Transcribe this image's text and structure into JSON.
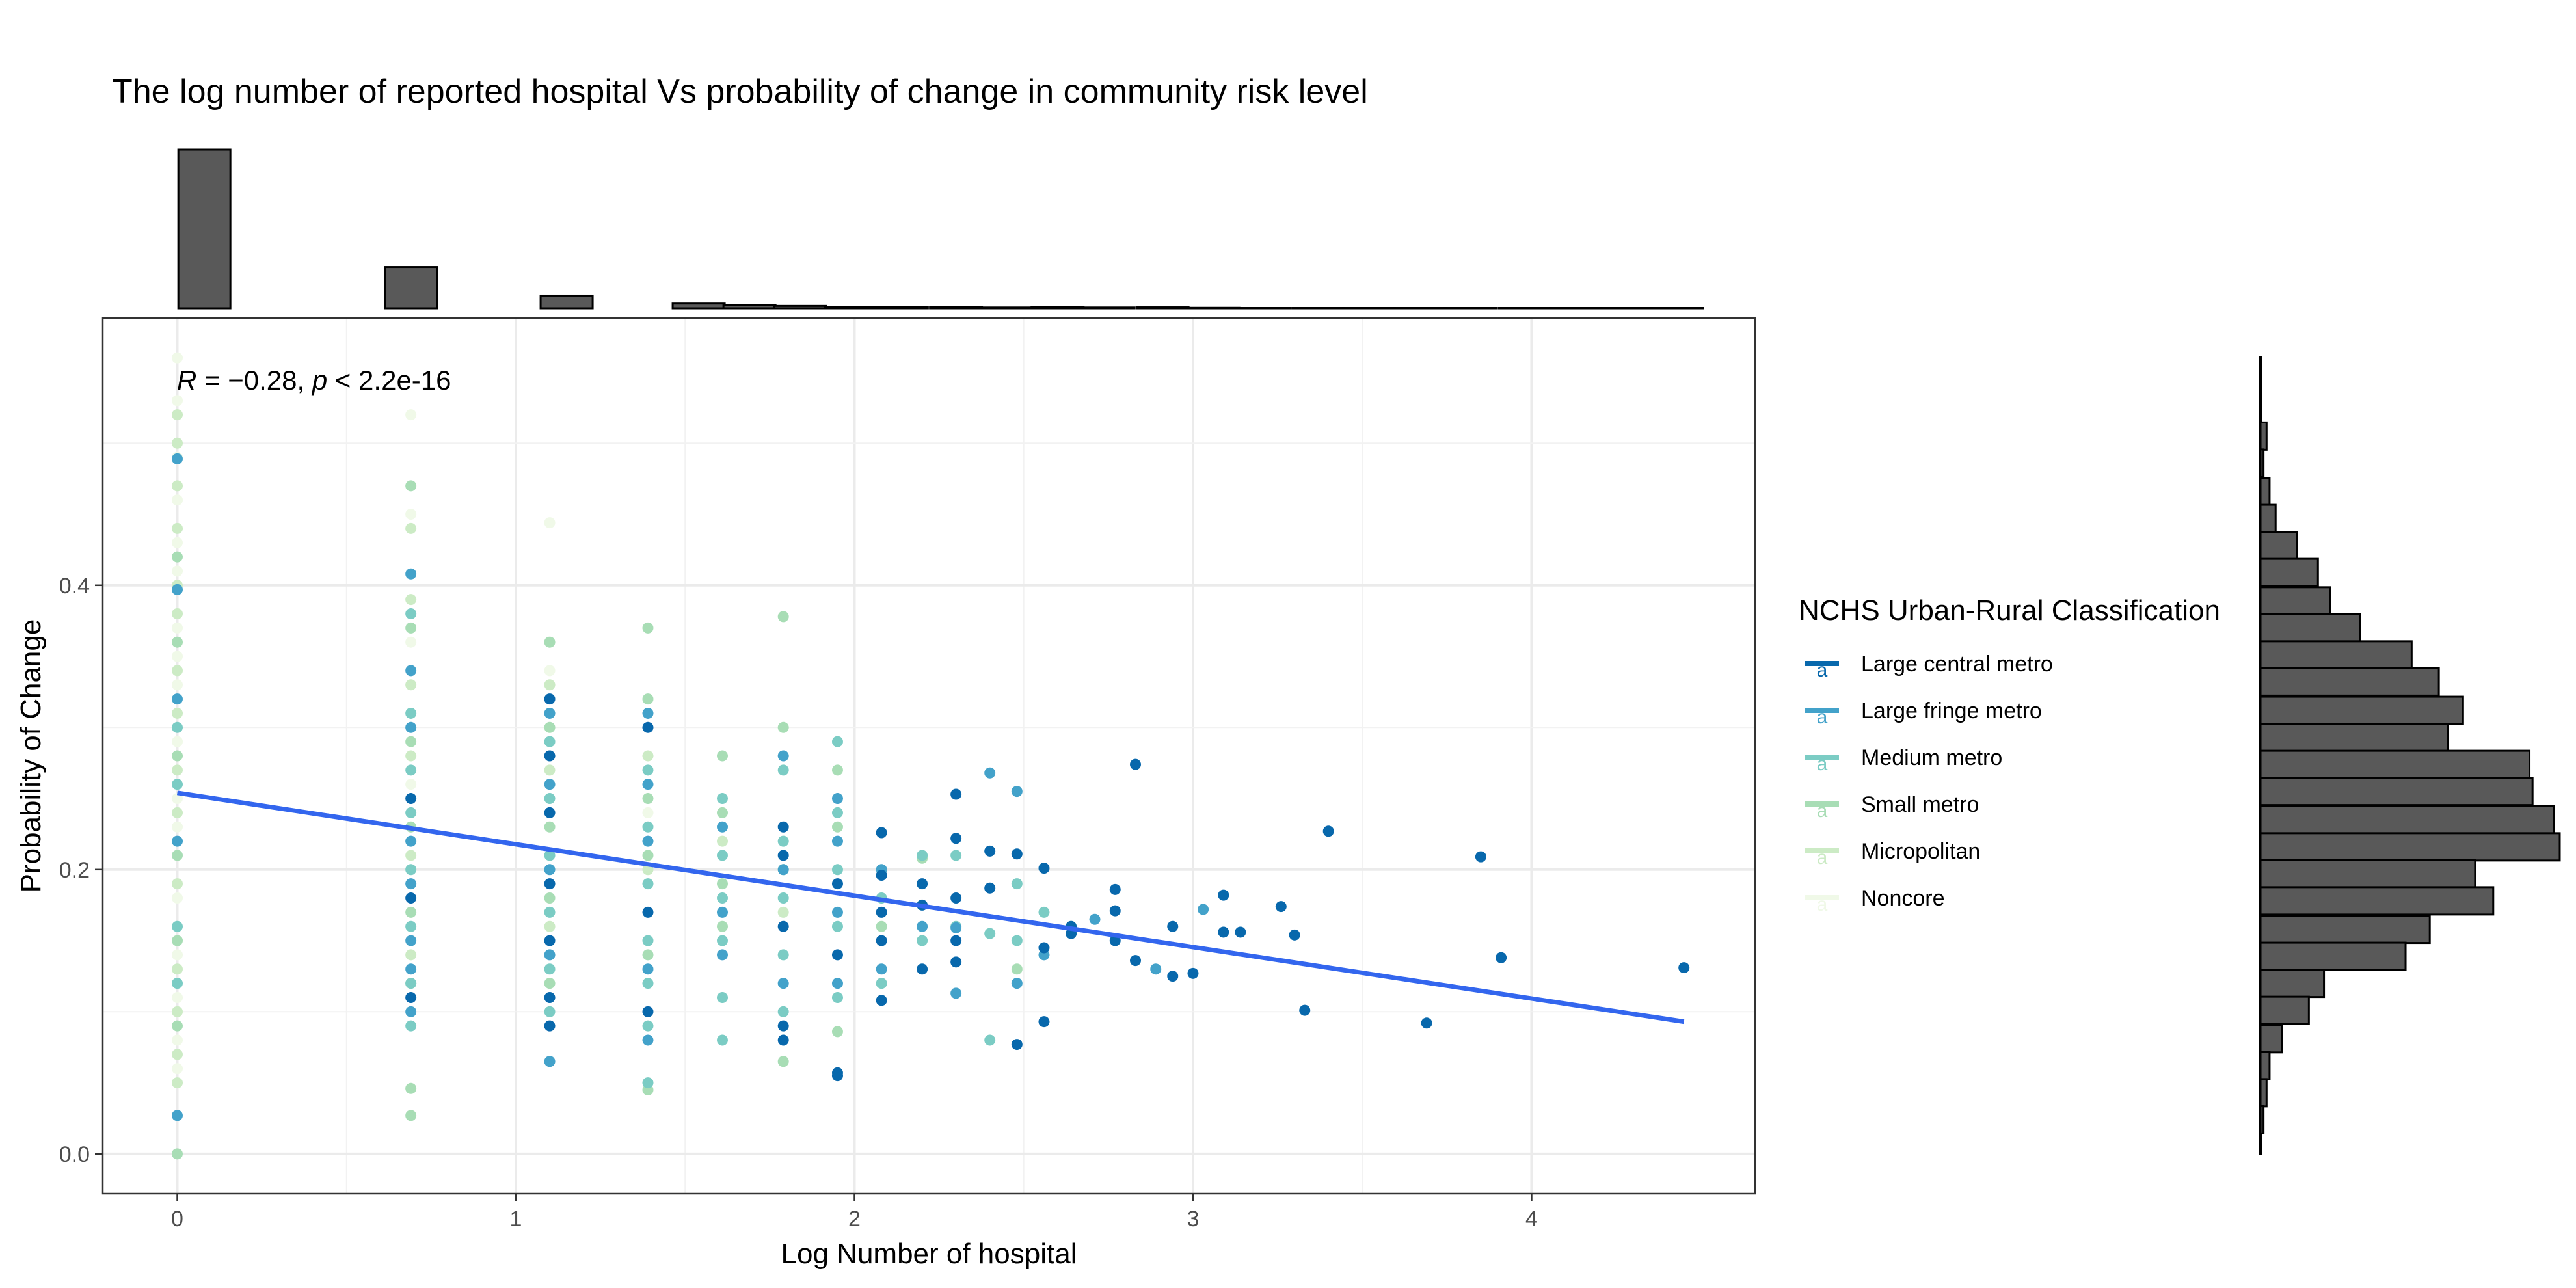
{
  "chart_data": {
    "type": "scatter",
    "title": "The log number of reported hospital Vs probability of change in community risk level",
    "xlabel": "Log Number of hospital",
    "ylabel": "Probability of Change",
    "xlim": [
      -0.22,
      4.66
    ],
    "ylim": [
      -0.028,
      0.588
    ],
    "x_ticks": [
      0,
      1,
      2,
      3,
      4
    ],
    "x_tick_labels": [
      "0",
      "1",
      "2",
      "3",
      "4"
    ],
    "y_ticks": [
      0.0,
      0.2,
      0.4
    ],
    "y_tick_labels": [
      "0.0",
      "0.2",
      "0.4"
    ],
    "grid": true,
    "annotation": {
      "r_symbol": "R",
      "r_text": " = −0.28, ",
      "p_symbol": "p",
      "p_text": " < 2.2e-16",
      "position": "top-left"
    },
    "regression_line": {
      "x": [
        0,
        4.45
      ],
      "y": [
        0.254,
        0.093
      ],
      "color": "#3366ee"
    },
    "legend": {
      "title": "NCHS Urban-Rural Classification",
      "placement": "right",
      "key_glyph": "a"
    },
    "series": [
      {
        "name": "Large central metro",
        "color": "#0868ac",
        "points": [
          [
            1.1,
            0.32
          ],
          [
            1.1,
            0.28
          ],
          [
            1.1,
            0.24
          ],
          [
            1.1,
            0.19
          ],
          [
            1.1,
            0.15
          ],
          [
            1.1,
            0.11
          ],
          [
            1.1,
            0.09
          ],
          [
            0.69,
            0.11
          ],
          [
            0.69,
            0.18
          ],
          [
            0.69,
            0.25
          ],
          [
            1.39,
            0.3
          ],
          [
            1.39,
            0.17
          ],
          [
            1.39,
            0.1
          ],
          [
            1.79,
            0.23
          ],
          [
            1.79,
            0.21
          ],
          [
            1.79,
            0.16
          ],
          [
            1.79,
            0.09
          ],
          [
            1.79,
            0.08
          ],
          [
            1.95,
            0.19
          ],
          [
            1.95,
            0.14
          ],
          [
            1.95,
            0.055
          ],
          [
            1.95,
            0.057
          ],
          [
            2.08,
            0.226
          ],
          [
            2.08,
            0.196
          ],
          [
            2.08,
            0.17
          ],
          [
            2.08,
            0.15
          ],
          [
            2.08,
            0.108
          ],
          [
            2.2,
            0.19
          ],
          [
            2.2,
            0.175
          ],
          [
            2.2,
            0.13
          ],
          [
            2.3,
            0.253
          ],
          [
            2.3,
            0.222
          ],
          [
            2.3,
            0.18
          ],
          [
            2.3,
            0.15
          ],
          [
            2.3,
            0.135
          ],
          [
            2.4,
            0.213
          ],
          [
            2.4,
            0.187
          ],
          [
            2.48,
            0.211
          ],
          [
            2.48,
            0.077
          ],
          [
            2.56,
            0.201
          ],
          [
            2.56,
            0.145
          ],
          [
            2.56,
            0.093
          ],
          [
            2.64,
            0.16
          ],
          [
            2.64,
            0.155
          ],
          [
            2.77,
            0.186
          ],
          [
            2.77,
            0.171
          ],
          [
            2.77,
            0.15
          ],
          [
            2.83,
            0.274
          ],
          [
            2.83,
            0.136
          ],
          [
            2.94,
            0.16
          ],
          [
            2.94,
            0.125
          ],
          [
            3.0,
            0.127
          ],
          [
            3.09,
            0.182
          ],
          [
            3.09,
            0.156
          ],
          [
            3.14,
            0.156
          ],
          [
            3.26,
            0.174
          ],
          [
            3.3,
            0.154
          ],
          [
            3.33,
            0.101
          ],
          [
            3.4,
            0.227
          ],
          [
            3.69,
            0.092
          ],
          [
            3.85,
            0.209
          ],
          [
            3.91,
            0.138
          ],
          [
            4.45,
            0.131
          ]
        ]
      },
      {
        "name": "Large fringe metro",
        "color": "#43a2ca",
        "points": [
          [
            0,
            0.489
          ],
          [
            0,
            0.397
          ],
          [
            0,
            0.027
          ],
          [
            0,
            0.32
          ],
          [
            0,
            0.22
          ],
          [
            0.69,
            0.408
          ],
          [
            0.69,
            0.34
          ],
          [
            0.69,
            0.3
          ],
          [
            0.69,
            0.22
          ],
          [
            0.69,
            0.19
          ],
          [
            0.69,
            0.15
          ],
          [
            0.69,
            0.13
          ],
          [
            0.69,
            0.1
          ],
          [
            1.1,
            0.31
          ],
          [
            1.1,
            0.26
          ],
          [
            1.1,
            0.2
          ],
          [
            1.1,
            0.14
          ],
          [
            1.1,
            0.065
          ],
          [
            1.39,
            0.31
          ],
          [
            1.39,
            0.26
          ],
          [
            1.39,
            0.22
          ],
          [
            1.39,
            0.13
          ],
          [
            1.39,
            0.08
          ],
          [
            1.61,
            0.23
          ],
          [
            1.61,
            0.17
          ],
          [
            1.61,
            0.14
          ],
          [
            1.79,
            0.28
          ],
          [
            1.79,
            0.2
          ],
          [
            1.79,
            0.12
          ],
          [
            1.95,
            0.25
          ],
          [
            1.95,
            0.22
          ],
          [
            1.95,
            0.17
          ],
          [
            1.95,
            0.12
          ],
          [
            2.08,
            0.2
          ],
          [
            2.08,
            0.13
          ],
          [
            2.2,
            0.16
          ],
          [
            2.3,
            0.113
          ],
          [
            2.3,
            0.159
          ],
          [
            2.4,
            0.268
          ],
          [
            2.48,
            0.255
          ],
          [
            2.48,
            0.12
          ],
          [
            2.56,
            0.14
          ],
          [
            2.71,
            0.165
          ],
          [
            2.89,
            0.13
          ],
          [
            3.03,
            0.172
          ]
        ]
      },
      {
        "name": "Medium metro",
        "color": "#7bccc4",
        "points": [
          [
            0,
            0.3
          ],
          [
            0,
            0.26
          ],
          [
            0,
            0.16
          ],
          [
            0,
            0.12
          ],
          [
            0.69,
            0.38
          ],
          [
            0.69,
            0.31
          ],
          [
            0.69,
            0.27
          ],
          [
            0.69,
            0.24
          ],
          [
            0.69,
            0.2
          ],
          [
            0.69,
            0.16
          ],
          [
            0.69,
            0.12
          ],
          [
            0.69,
            0.09
          ],
          [
            1.1,
            0.29
          ],
          [
            1.1,
            0.25
          ],
          [
            1.1,
            0.21
          ],
          [
            1.1,
            0.17
          ],
          [
            1.1,
            0.13
          ],
          [
            1.1,
            0.1
          ],
          [
            1.39,
            0.27
          ],
          [
            1.39,
            0.23
          ],
          [
            1.39,
            0.19
          ],
          [
            1.39,
            0.15
          ],
          [
            1.39,
            0.12
          ],
          [
            1.39,
            0.09
          ],
          [
            1.39,
            0.05
          ],
          [
            1.61,
            0.25
          ],
          [
            1.61,
            0.21
          ],
          [
            1.61,
            0.18
          ],
          [
            1.61,
            0.15
          ],
          [
            1.61,
            0.11
          ],
          [
            1.61,
            0.08
          ],
          [
            1.79,
            0.27
          ],
          [
            1.79,
            0.22
          ],
          [
            1.79,
            0.18
          ],
          [
            1.79,
            0.14
          ],
          [
            1.79,
            0.1
          ],
          [
            1.95,
            0.29
          ],
          [
            1.95,
            0.24
          ],
          [
            1.95,
            0.2
          ],
          [
            1.95,
            0.16
          ],
          [
            1.95,
            0.11
          ],
          [
            2.08,
            0.18
          ],
          [
            2.08,
            0.12
          ],
          [
            2.2,
            0.21
          ],
          [
            2.2,
            0.15
          ],
          [
            2.3,
            0.21
          ],
          [
            2.3,
            0.16
          ],
          [
            2.4,
            0.155
          ],
          [
            2.4,
            0.08
          ],
          [
            2.48,
            0.19
          ],
          [
            2.48,
            0.15
          ],
          [
            2.56,
            0.17
          ],
          [
            2.64,
            0.16
          ]
        ]
      },
      {
        "name": "Small metro",
        "color": "#a8ddb5",
        "points": [
          [
            0,
            0.42
          ],
          [
            0,
            0.36
          ],
          [
            0,
            0.28
          ],
          [
            0,
            0.21
          ],
          [
            0,
            0.15
          ],
          [
            0,
            0.09
          ],
          [
            0,
            0.0
          ],
          [
            0.69,
            0.47
          ],
          [
            0.69,
            0.37
          ],
          [
            0.69,
            0.29
          ],
          [
            0.69,
            0.23
          ],
          [
            0.69,
            0.17
          ],
          [
            0.69,
            0.12
          ],
          [
            0.69,
            0.046
          ],
          [
            0.69,
            0.027
          ],
          [
            1.1,
            0.36
          ],
          [
            1.1,
            0.3
          ],
          [
            1.1,
            0.23
          ],
          [
            1.1,
            0.18
          ],
          [
            1.1,
            0.12
          ],
          [
            1.39,
            0.37
          ],
          [
            1.39,
            0.32
          ],
          [
            1.39,
            0.25
          ],
          [
            1.39,
            0.21
          ],
          [
            1.39,
            0.14
          ],
          [
            1.39,
            0.045
          ],
          [
            1.61,
            0.28
          ],
          [
            1.61,
            0.24
          ],
          [
            1.61,
            0.19
          ],
          [
            1.61,
            0.16
          ],
          [
            1.79,
            0.378
          ],
          [
            1.79,
            0.3
          ],
          [
            1.79,
            0.2
          ],
          [
            1.79,
            0.065
          ],
          [
            1.95,
            0.27
          ],
          [
            1.95,
            0.23
          ],
          [
            1.95,
            0.086
          ],
          [
            2.08,
            0.16
          ],
          [
            2.2,
            0.208
          ],
          [
            2.48,
            0.13
          ]
        ]
      },
      {
        "name": "Micropolitan",
        "color": "#ccebc5",
        "points": [
          [
            0,
            0.52
          ],
          [
            0,
            0.5
          ],
          [
            0,
            0.47
          ],
          [
            0,
            0.44
          ],
          [
            0,
            0.4
          ],
          [
            0,
            0.38
          ],
          [
            0,
            0.34
          ],
          [
            0,
            0.31
          ],
          [
            0,
            0.27
          ],
          [
            0,
            0.24
          ],
          [
            0,
            0.19
          ],
          [
            0,
            0.13
          ],
          [
            0,
            0.1
          ],
          [
            0,
            0.07
          ],
          [
            0,
            0.05
          ],
          [
            0.69,
            0.44
          ],
          [
            0.69,
            0.39
          ],
          [
            0.69,
            0.33
          ],
          [
            0.69,
            0.28
          ],
          [
            0.69,
            0.21
          ],
          [
            0.69,
            0.14
          ],
          [
            1.1,
            0.33
          ],
          [
            1.1,
            0.27
          ],
          [
            1.1,
            0.16
          ],
          [
            1.39,
            0.28
          ],
          [
            1.39,
            0.2
          ],
          [
            1.61,
            0.22
          ],
          [
            1.79,
            0.17
          ]
        ]
      },
      {
        "name": "Noncore",
        "color": "#f0f9e8",
        "points": [
          [
            0,
            0.56
          ],
          [
            0,
            0.53
          ],
          [
            0,
            0.49
          ],
          [
            0,
            0.46
          ],
          [
            0,
            0.43
          ],
          [
            0,
            0.41
          ],
          [
            0,
            0.37
          ],
          [
            0,
            0.35
          ],
          [
            0,
            0.33
          ],
          [
            0,
            0.29
          ],
          [
            0,
            0.25
          ],
          [
            0,
            0.23
          ],
          [
            0,
            0.18
          ],
          [
            0,
            0.14
          ],
          [
            0,
            0.11
          ],
          [
            0,
            0.08
          ],
          [
            0,
            0.06
          ],
          [
            0.69,
            0.52
          ],
          [
            0.69,
            0.45
          ],
          [
            0.69,
            0.36
          ],
          [
            0.69,
            0.26
          ],
          [
            1.1,
            0.444
          ],
          [
            1.1,
            0.34
          ],
          [
            1.39,
            0.24
          ]
        ]
      }
    ],
    "marginal_x_histogram": {
      "bin_centers": [
        0.08,
        0.69,
        1.15,
        1.54,
        1.69,
        1.84,
        1.99,
        2.14,
        2.3,
        2.45,
        2.6,
        2.75,
        2.91,
        3.06,
        3.21,
        3.37,
        3.52,
        3.67,
        3.82,
        3.98,
        4.13,
        4.28,
        4.43
      ],
      "counts": [
        100,
        26,
        8,
        3,
        2,
        1.5,
        1,
        0.8,
        1,
        0.5,
        0.8,
        0.5,
        0.6,
        0.3,
        0.2,
        0.2,
        0.2,
        0.2,
        0.2,
        0.2,
        0.2,
        0.2,
        0.2
      ]
    },
    "marginal_y_histogram": {
      "bin_centers": [
        0.505,
        0.486,
        0.466,
        0.447,
        0.428,
        0.409,
        0.389,
        0.37,
        0.351,
        0.332,
        0.312,
        0.293,
        0.274,
        0.255,
        0.235,
        0.216,
        0.197,
        0.178,
        0.158,
        0.139,
        0.12,
        0.101,
        0.081,
        0.062,
        0.043,
        0.024,
        0.005
      ],
      "counts": [
        2,
        1,
        3,
        5,
        12,
        19,
        23,
        33,
        50,
        59,
        67,
        62,
        89,
        90,
        97,
        99,
        71,
        77,
        56,
        48,
        21,
        16,
        7,
        3,
        2,
        1,
        0
      ]
    }
  }
}
